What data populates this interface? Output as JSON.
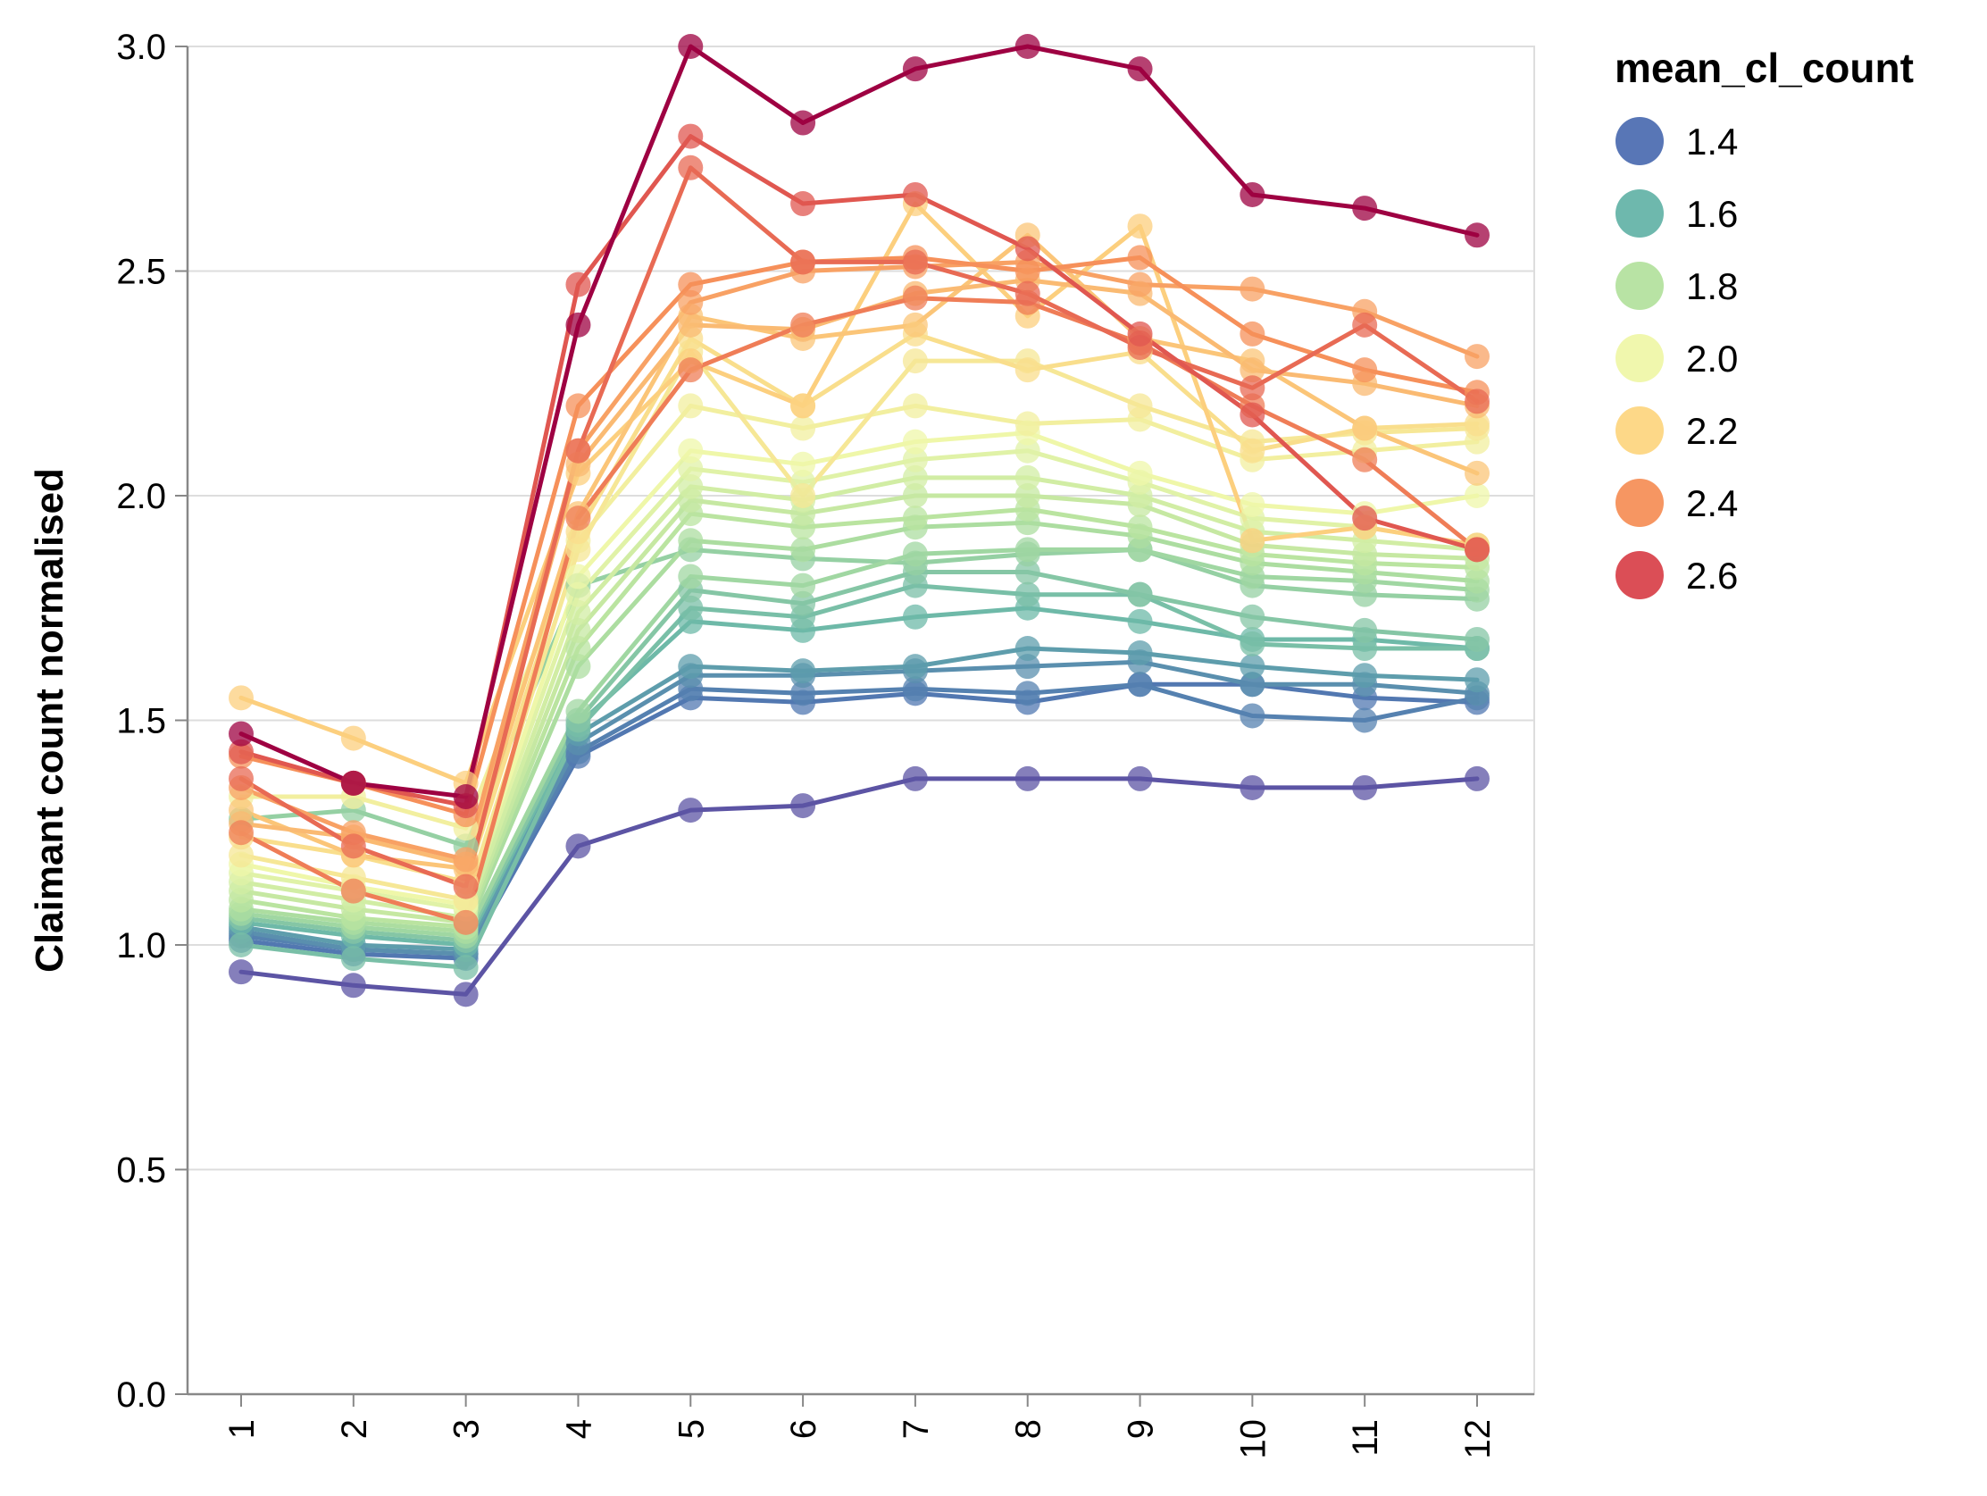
{
  "chart_data": {
    "type": "line",
    "title": "",
    "xlabel": "",
    "ylabel": "Claimant count normalised",
    "x": [
      1,
      2,
      3,
      4,
      5,
      6,
      7,
      8,
      9,
      10,
      11,
      12
    ],
    "x_tick_labels": [
      "1",
      "2",
      "3",
      "4",
      "5",
      "6",
      "7",
      "8",
      "9",
      "10",
      "11",
      "12"
    ],
    "ylim": [
      0,
      3
    ],
    "y_ticks": [
      0.0,
      0.5,
      1.0,
      1.5,
      2.0,
      2.5,
      3.0
    ],
    "y_tick_labels": [
      "0.0",
      "0.5",
      "1.0",
      "1.5",
      "2.0",
      "2.5",
      "3.0"
    ],
    "grid": "horizontal",
    "legend": {
      "title": "mean_cl_count",
      "placement": "right",
      "entries": [
        {
          "label": "1.4",
          "color": "#4f6fb2"
        },
        {
          "label": "1.6",
          "color": "#66b4a9"
        },
        {
          "label": "1.8",
          "color": "#b4e29f"
        },
        {
          "label": "2.0",
          "color": "#eff7a9"
        },
        {
          "label": "2.2",
          "color": "#fdd682"
        },
        {
          "label": "2.4",
          "color": "#f6905a"
        },
        {
          "label": "2.6",
          "color": "#d9444d"
        }
      ]
    },
    "color_scale": {
      "domain": [
        1.25,
        1.45,
        1.6,
        1.8,
        2.0,
        2.2,
        2.4,
        2.6,
        2.75
      ],
      "range": [
        "#5e4fa2",
        "#4f6fb2",
        "#66b4a9",
        "#b4e29f",
        "#eff7a9",
        "#fdd682",
        "#f6905a",
        "#d9444d",
        "#9e0142"
      ]
    },
    "series": [
      {
        "mean_cl_count": 1.28,
        "values": [
          0.94,
          0.91,
          0.89,
          1.22,
          1.3,
          1.31,
          1.37,
          1.37,
          1.37,
          1.35,
          1.35,
          1.37
        ]
      },
      {
        "mean_cl_count": 1.47,
        "values": [
          1.01,
          0.98,
          0.97,
          1.42,
          1.55,
          1.54,
          1.56,
          1.54,
          1.58,
          1.58,
          1.55,
          1.54
        ]
      },
      {
        "mean_cl_count": 1.49,
        "values": [
          1.02,
          0.99,
          0.98,
          1.43,
          1.57,
          1.56,
          1.57,
          1.56,
          1.58,
          1.51,
          1.5,
          1.55
        ]
      },
      {
        "mean_cl_count": 1.52,
        "values": [
          1.03,
          0.99,
          0.98,
          1.45,
          1.6,
          1.6,
          1.61,
          1.62,
          1.63,
          1.58,
          1.58,
          1.56
        ]
      },
      {
        "mean_cl_count": 1.55,
        "values": [
          1.04,
          1.0,
          0.99,
          1.47,
          1.62,
          1.61,
          1.62,
          1.66,
          1.65,
          1.62,
          1.6,
          1.59
        ]
      },
      {
        "mean_cl_count": 1.62,
        "values": [
          1.05,
          1.02,
          1.0,
          1.49,
          1.72,
          1.7,
          1.73,
          1.75,
          1.72,
          1.68,
          1.68,
          1.66
        ]
      },
      {
        "mean_cl_count": 1.65,
        "values": [
          1.0,
          0.97,
          0.95,
          1.48,
          1.75,
          1.73,
          1.8,
          1.78,
          1.78,
          1.67,
          1.66,
          1.66
        ]
      },
      {
        "mean_cl_count": 1.68,
        "values": [
          1.06,
          1.03,
          1.01,
          1.5,
          1.79,
          1.76,
          1.83,
          1.83,
          1.78,
          1.73,
          1.7,
          1.68
        ]
      },
      {
        "mean_cl_count": 1.72,
        "values": [
          1.28,
          1.3,
          1.22,
          1.8,
          1.88,
          1.86,
          1.85,
          1.87,
          1.88,
          1.8,
          1.78,
          1.77
        ]
      },
      {
        "mean_cl_count": 1.75,
        "values": [
          1.07,
          1.04,
          1.02,
          1.52,
          1.82,
          1.8,
          1.87,
          1.88,
          1.88,
          1.82,
          1.81,
          1.79
        ]
      },
      {
        "mean_cl_count": 1.78,
        "values": [
          1.08,
          1.05,
          1.03,
          1.62,
          1.9,
          1.88,
          1.93,
          1.94,
          1.91,
          1.85,
          1.83,
          1.81
        ]
      },
      {
        "mean_cl_count": 1.82,
        "values": [
          1.1,
          1.06,
          1.04,
          1.66,
          1.96,
          1.93,
          1.95,
          1.97,
          1.93,
          1.87,
          1.85,
          1.84
        ]
      },
      {
        "mean_cl_count": 1.86,
        "values": [
          1.12,
          1.08,
          1.05,
          1.7,
          1.99,
          1.96,
          2.0,
          2.0,
          1.98,
          1.89,
          1.87,
          1.86
        ]
      },
      {
        "mean_cl_count": 1.9,
        "values": [
          1.14,
          1.1,
          1.06,
          1.74,
          2.02,
          1.99,
          2.04,
          2.04,
          2.0,
          1.92,
          1.9,
          1.88
        ]
      },
      {
        "mean_cl_count": 1.95,
        "values": [
          1.16,
          1.12,
          1.08,
          1.78,
          2.06,
          2.03,
          2.08,
          2.1,
          2.03,
          1.95,
          1.93,
          1.89
        ]
      },
      {
        "mean_cl_count": 2.0,
        "values": [
          1.18,
          1.13,
          1.09,
          1.82,
          2.1,
          2.07,
          2.12,
          2.14,
          2.05,
          1.98,
          1.96,
          2.0
        ]
      },
      {
        "mean_cl_count": 2.05,
        "values": [
          1.33,
          1.33,
          1.26,
          1.9,
          2.2,
          2.15,
          2.2,
          2.16,
          2.17,
          2.08,
          2.1,
          2.12
        ]
      },
      {
        "mean_cl_count": 2.1,
        "values": [
          1.2,
          1.15,
          1.1,
          1.88,
          2.32,
          2.0,
          2.3,
          2.3,
          2.2,
          2.12,
          2.14,
          2.15
        ]
      },
      {
        "mean_cl_count": 2.15,
        "values": [
          1.24,
          1.2,
          1.14,
          1.92,
          2.35,
          2.2,
          2.36,
          2.28,
          2.32,
          2.1,
          2.15,
          2.16
        ]
      },
      {
        "mean_cl_count": 2.22,
        "values": [
          1.55,
          1.46,
          1.36,
          2.05,
          2.3,
          2.2,
          2.65,
          2.4,
          2.6,
          1.9,
          1.93,
          1.89
        ]
      },
      {
        "mean_cl_count": 2.25,
        "values": [
          1.3,
          1.2,
          1.17,
          1.96,
          2.4,
          2.35,
          2.38,
          2.58,
          2.35,
          2.3,
          2.15,
          2.05
        ]
      },
      {
        "mean_cl_count": 2.28,
        "values": [
          1.27,
          1.24,
          1.18,
          2.07,
          2.38,
          2.37,
          2.45,
          2.48,
          2.45,
          2.28,
          2.25,
          2.2
        ]
      },
      {
        "mean_cl_count": 2.35,
        "values": [
          1.35,
          1.25,
          1.19,
          2.1,
          2.43,
          2.5,
          2.51,
          2.52,
          2.47,
          2.46,
          2.41,
          2.31
        ]
      },
      {
        "mean_cl_count": 2.4,
        "values": [
          1.42,
          1.36,
          1.29,
          2.2,
          2.47,
          2.52,
          2.53,
          2.5,
          2.53,
          2.36,
          2.28,
          2.23
        ]
      },
      {
        "mean_cl_count": 2.45,
        "values": [
          1.25,
          1.12,
          1.05,
          1.95,
          2.28,
          2.38,
          2.44,
          2.43,
          2.34,
          2.2,
          2.08,
          1.88
        ]
      },
      {
        "mean_cl_count": 2.5,
        "values": [
          1.37,
          1.22,
          1.13,
          2.1,
          2.73,
          2.52,
          2.52,
          2.45,
          2.33,
          2.24,
          2.38,
          2.21
        ]
      },
      {
        "mean_cl_count": 2.55,
        "values": [
          1.43,
          1.36,
          1.31,
          2.47,
          2.8,
          2.65,
          2.67,
          2.55,
          2.36,
          2.18,
          1.95,
          1.88
        ]
      },
      {
        "mean_cl_count": 2.75,
        "values": [
          1.47,
          1.36,
          1.33,
          2.38,
          3.0,
          2.83,
          2.95,
          3.0,
          2.95,
          2.67,
          2.64,
          2.58
        ]
      }
    ]
  }
}
